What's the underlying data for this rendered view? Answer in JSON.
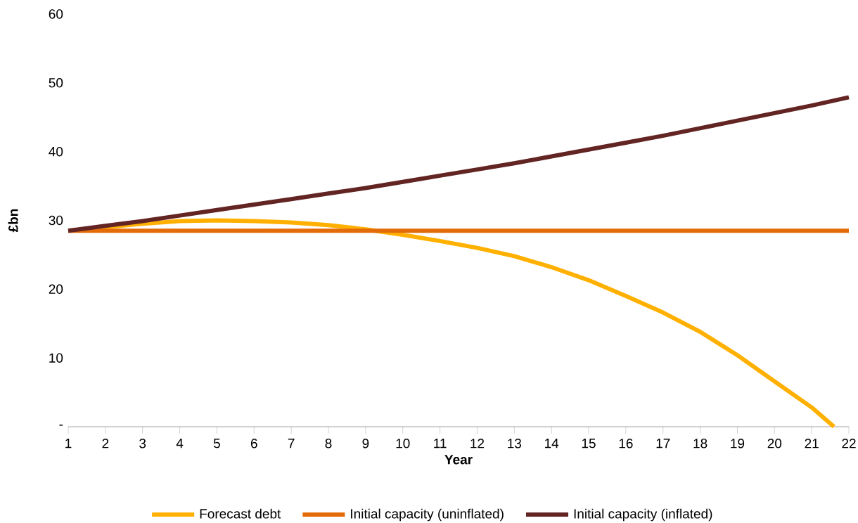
{
  "chart_data": {
    "type": "line",
    "xlabel": "Year",
    "ylabel": "£bn",
    "xlim": [
      1,
      22
    ],
    "xticks": [
      1,
      2,
      3,
      4,
      5,
      6,
      7,
      8,
      9,
      10,
      11,
      12,
      13,
      14,
      15,
      16,
      17,
      18,
      19,
      20,
      21,
      22
    ],
    "ylim": [
      0,
      60
    ],
    "yticks": [
      {
        "value": 0,
        "label": "-"
      },
      10,
      20,
      30,
      40,
      50,
      60
    ],
    "legend": "bottom",
    "series": [
      {
        "name": "Forecast debt",
        "color": "#ffb000",
        "x": [
          1,
          2,
          3,
          4,
          5,
          6,
          7,
          8,
          9,
          10,
          11,
          12,
          13,
          14,
          15,
          16,
          17,
          18,
          19,
          20,
          21,
          21.6
        ],
        "values": [
          28.5,
          29.0,
          29.5,
          29.9,
          30.0,
          29.9,
          29.7,
          29.3,
          28.7,
          27.9,
          27.0,
          26.0,
          24.8,
          23.2,
          21.3,
          19.0,
          16.6,
          13.8,
          10.4,
          6.6,
          2.8,
          0
        ]
      },
      {
        "name": "Initial capacity (uninflated)",
        "color": "#e36c09",
        "x": [
          1,
          22
        ],
        "values": [
          28.5,
          28.5
        ]
      },
      {
        "name": "Initial capacity (inflated)",
        "color": "#632523",
        "x": [
          1,
          2,
          3,
          4,
          5,
          6,
          7,
          8,
          9,
          10,
          11,
          12,
          13,
          14,
          15,
          16,
          17,
          18,
          19,
          20,
          21,
          22
        ],
        "values": [
          28.5,
          29.2,
          29.9,
          30.7,
          31.5,
          32.3,
          33.1,
          33.9,
          34.7,
          35.6,
          36.5,
          37.4,
          38.3,
          39.3,
          40.3,
          41.3,
          42.3,
          43.4,
          44.5,
          45.6,
          46.7,
          47.9
        ]
      }
    ]
  }
}
